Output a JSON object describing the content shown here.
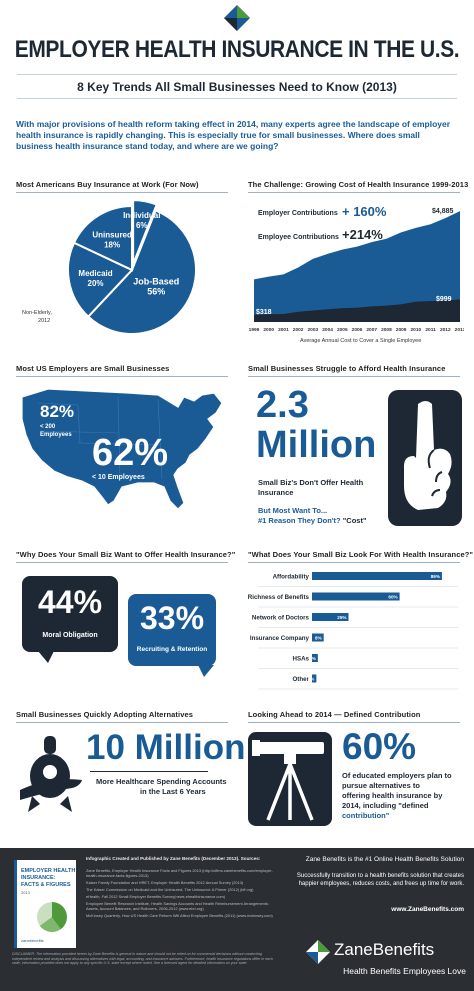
{
  "colors": {
    "brand_blue": "#1a5b96",
    "dark_navy": "#1e2834",
    "light_blue_bg": "#dde8f2",
    "green_accent": "#4c9a3c"
  },
  "header": {
    "title": "EMPLOYER HEALTH INSURANCE IN THE U.S.",
    "subtitle": "8 Key Trends All Small Businesses Need to Know (2013)",
    "intro": "With major provisions of health reform taking effect in 2014, many experts agree the landscape of employer health insurance is rapidly changing. This is especially true for small businesses. Where does small business health insurance stand today, and where are we going?"
  },
  "pie_section": {
    "title": "Most Americans Buy Insurance at Work (For Now)",
    "note_line1": "Non-Elderly,",
    "note_line2": "2012"
  },
  "cost_section": {
    "title": "The Challenge:  Growing Cost of Health Insurance 1999-2013",
    "employer_label": "Employer Contributions",
    "employer_pct": "+ 160%",
    "employee_label": "Employee Contributions",
    "employee_pct": "+214%",
    "val_4885": "$4,885",
    "val_1878": "$1,878",
    "val_999": "$999",
    "val_318": "$318",
    "caption": "Average Annual Cost to Cover a Single Employee"
  },
  "map_section": {
    "title": "Most US Employers are Small Businesses",
    "pct1": "82%",
    "pct1_line1": "< 200",
    "pct1_line2": "Employees",
    "pct2": "62%",
    "pct2_label": "< 10 Employees"
  },
  "afford_section": {
    "title": "Small Businesses Struggle to Afford Health Insurance",
    "big1": "2.3",
    "big2": "Million",
    "line1": "Small Biz's Don't Offer Health",
    "line2": "Insurance",
    "line3": "But Most Want To...",
    "line4_a": "#1 Reason They Don't?",
    "line4_b": "\"Cost\""
  },
  "why_section": {
    "title": "\"Why Does Your Small Biz Want to Offer Health Insurance?\"",
    "pct1": "44%",
    "label1": "Moral Obligation",
    "pct2": "33%",
    "label2": "Recruiting & Retention"
  },
  "look_section": {
    "title": "\"What Does Your Small Biz Look For With Health Insurance?\""
  },
  "alt_section": {
    "title": "Small Businesses Quickly Adopting Alternatives",
    "big": "10 Million",
    "line1": "More Healthcare Spending Accounts",
    "line2": "in the Last 6 Years"
  },
  "dc_section": {
    "title": "Looking Ahead to 2014 — Defined Contribution",
    "pct": "60%",
    "line1": "Of educated employers plan to",
    "line2": "pursue  alternatives to",
    "line3": "offering health insurance by",
    "line4": "2014, including \"defined",
    "line5": "contribution\""
  },
  "footer": {
    "book_l1": "EMPLOYER HEALTH",
    "book_l2": "INSURANCE:",
    "book_l3": "FACTS & FIGURES",
    "book_l4": "2013",
    "book_brand": "zanebenefits",
    "sources_title": "Infographic Created and Published by Zane Benefits (December 2013). Sources:",
    "sources": [
      "Zane Benefits, Employer Health Insurance Facts and Figures 2013 (http://offers.zanebenefits.com/employer-health-insurance-facts-figures-2013)",
      "Kaiser Family Foundation and HRET, Employer Health Benefits 2012 Annual Survey (2013)",
      "The Kaiser Commission on Medicaid and the Uninsured, The Uninsured: A Primer (2012) (kff.org)",
      "eHealth, Fall 2012 Small Employer Benefits Survey(news.ehealthinsurance.com)",
      "Employee Benefit Research Institute, Health Savings Accounts and Health Reimbursement Arrangements: Assets, Account Balances, and Rollovers, 2006-2012 (www.ebri.org)",
      "McKinsey Quarterly, How US Health Care Reform Will Affect Employee Benefits (2011) (www.mckinsey.com)"
    ],
    "disclaimer": "DISCLAIMER: The information provided herein by Zane Benefits is general in nature and should not be relied on for commercial decisions without conducting independent review and analysis and discussing alternatives with legal, accounting, and insurance advisers. Furthermore, health insurance regulations differ in each state; information provided does not apply to any specific U.S. state except where noted. See a licensed agent for detailed information on your state.",
    "right_title": "Zane Benefits is the #1 Online Health Benefits Solution",
    "right_body": "Successfully transition to a health benefits solution that creates happier employees, reduces costs, and frees up time for work.",
    "url": "www.ZaneBenefits.com",
    "logo_name": "ZaneBenefits",
    "tagline": "Health Benefits Employees Love"
  },
  "chart_data": [
    {
      "type": "pie",
      "title": "Most Americans Buy Insurance at Work (For Now)",
      "slices": [
        {
          "label": "Job-Based",
          "value": 56
        },
        {
          "label": "Medicaid",
          "value": 20
        },
        {
          "label": "Uninsured",
          "value": 18
        },
        {
          "label": "Individual",
          "value": 6
        }
      ],
      "value_labels": [
        "56%",
        "20%",
        "18%",
        "6%"
      ]
    },
    {
      "type": "area",
      "title": "The Challenge:  Growing Cost of Health Insurance 1999-2013",
      "xlabel": "Average Annual Cost to Cover a Single Employee",
      "x": [
        1999,
        2000,
        2001,
        2002,
        2003,
        2004,
        2005,
        2006,
        2007,
        2008,
        2009,
        2010,
        2011,
        2012,
        2013
      ],
      "series": [
        {
          "name": "Employer Contributions",
          "values": [
            1878,
            2000,
            2100,
            2400,
            2780,
            3000,
            3190,
            3320,
            3520,
            3670,
            3950,
            4150,
            4310,
            4580,
            4885
          ]
        },
        {
          "name": "Employee Contributions",
          "values": [
            318,
            340,
            355,
            450,
            508,
            560,
            610,
            630,
            690,
            720,
            780,
            900,
            920,
            950,
            999
          ]
        }
      ],
      "ylim": [
        0,
        5200
      ]
    },
    {
      "type": "bar",
      "title": "\"What Does Your Small Biz Look For With Health Insurance?\"",
      "categories": [
        "Affordability",
        "Richness of Benefits",
        "Network of Doctors",
        "Insurance Company",
        "HSAs",
        "Other"
      ],
      "values": [
        89,
        60,
        25,
        8,
        4,
        3
      ],
      "value_labels": [
        "89%",
        "60%",
        "25%",
        "8%",
        "4%",
        "3%"
      ],
      "xlim": [
        0,
        100
      ]
    }
  ]
}
